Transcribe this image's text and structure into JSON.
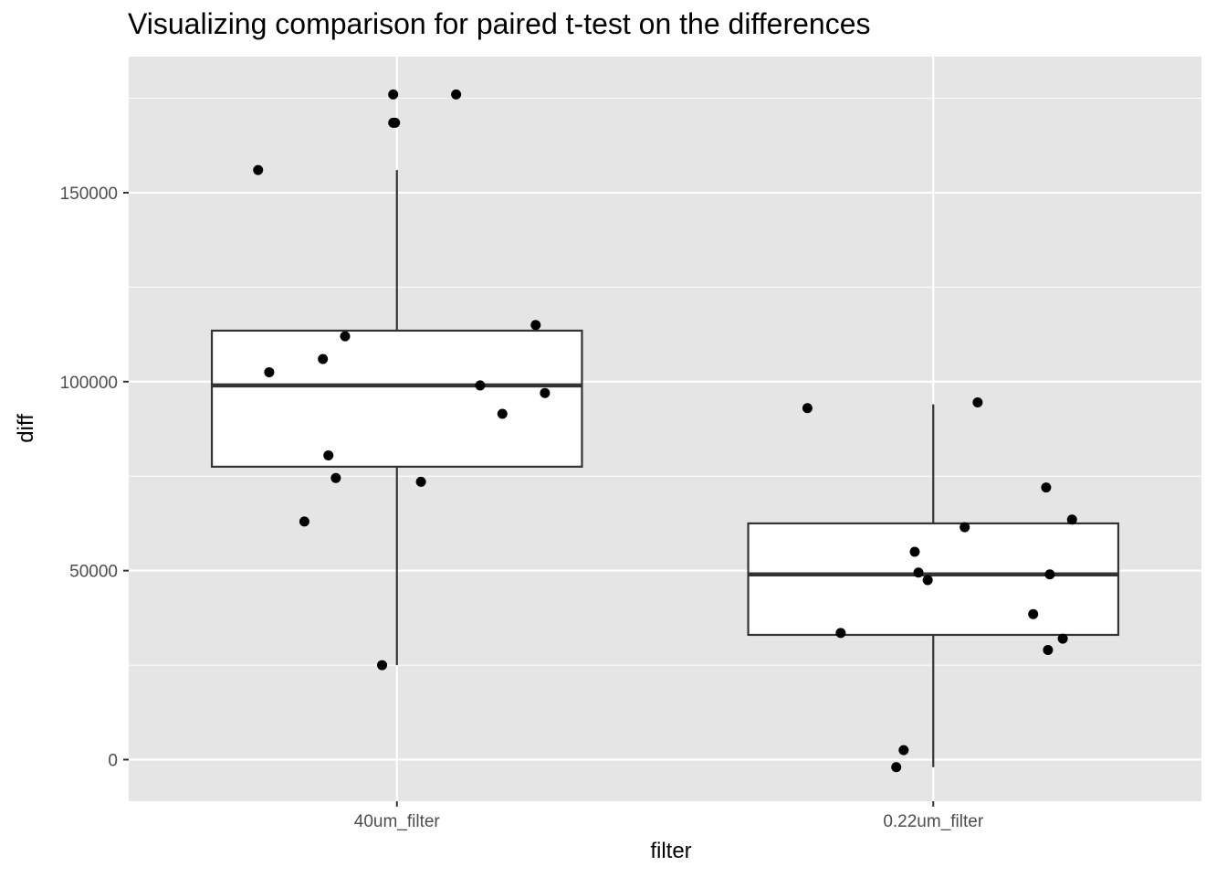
{
  "chart_data": {
    "type": "box",
    "title": "Visualizing comparison for paired t-test on the differences",
    "xlabel": "filter",
    "ylabel": "diff",
    "categories": [
      "40um_filter",
      "0.22um_filter"
    ],
    "y_ticks": [
      0,
      50000,
      100000,
      150000
    ],
    "y_tick_labels": [
      "0",
      "50000",
      "100000",
      "150000"
    ],
    "ylim": [
      -11000,
      186000
    ],
    "grid": true,
    "background": "#e5e5e5",
    "grid_color": "#ffffff",
    "box_fill": "#ffffff",
    "box_stroke": "#333333",
    "point_color": "#000000",
    "boxes": [
      {
        "category": "40um_filter",
        "lower_whisker": 25000,
        "q1": 77500,
        "median": 99000,
        "q3": 113500,
        "upper_whisker": 156000
      },
      {
        "category": "0.22um_filter",
        "lower_whisker": -2000,
        "q1": 33000,
        "median": 49000,
        "q3": 62500,
        "upper_whisker": 94000
      }
    ],
    "points": [
      {
        "category": "40um_filter",
        "jitter": -0.75,
        "y": 156000
      },
      {
        "category": "40um_filter",
        "jitter": -0.02,
        "y": 176000
      },
      {
        "category": "40um_filter",
        "jitter": -0.01,
        "y": 168500
      },
      {
        "category": "40um_filter",
        "jitter": -0.02,
        "y": 168500
      },
      {
        "category": "40um_filter",
        "jitter": 0.32,
        "y": 176000
      },
      {
        "category": "40um_filter",
        "jitter": -0.69,
        "y": 102500
      },
      {
        "category": "40um_filter",
        "jitter": -0.4,
        "y": 106000
      },
      {
        "category": "40um_filter",
        "jitter": -0.28,
        "y": 112000
      },
      {
        "category": "40um_filter",
        "jitter": 0.75,
        "y": 115000
      },
      {
        "category": "40um_filter",
        "jitter": 0.45,
        "y": 99000
      },
      {
        "category": "40um_filter",
        "jitter": 0.57,
        "y": 91500
      },
      {
        "category": "40um_filter",
        "jitter": 0.8,
        "y": 97000
      },
      {
        "category": "40um_filter",
        "jitter": -0.37,
        "y": 80500
      },
      {
        "category": "40um_filter",
        "jitter": -0.33,
        "y": 74500
      },
      {
        "category": "40um_filter",
        "jitter": 0.13,
        "y": 73500
      },
      {
        "category": "40um_filter",
        "jitter": -0.5,
        "y": 63000
      },
      {
        "category": "40um_filter",
        "jitter": -0.08,
        "y": 25000
      },
      {
        "category": "0.22um_filter",
        "jitter": -0.68,
        "y": 93000
      },
      {
        "category": "0.22um_filter",
        "jitter": 0.24,
        "y": 94500
      },
      {
        "category": "0.22um_filter",
        "jitter": 0.61,
        "y": 72000
      },
      {
        "category": "0.22um_filter",
        "jitter": 0.75,
        "y": 63500
      },
      {
        "category": "0.22um_filter",
        "jitter": 0.17,
        "y": 61500
      },
      {
        "category": "0.22um_filter",
        "jitter": -0.1,
        "y": 55000
      },
      {
        "category": "0.22um_filter",
        "jitter": -0.08,
        "y": 49500
      },
      {
        "category": "0.22um_filter",
        "jitter": -0.03,
        "y": 47500
      },
      {
        "category": "0.22um_filter",
        "jitter": 0.63,
        "y": 49000
      },
      {
        "category": "0.22um_filter",
        "jitter": 0.54,
        "y": 38500
      },
      {
        "category": "0.22um_filter",
        "jitter": 0.7,
        "y": 32000
      },
      {
        "category": "0.22um_filter",
        "jitter": 0.62,
        "y": 29000
      },
      {
        "category": "0.22um_filter",
        "jitter": -0.5,
        "y": 33500
      },
      {
        "category": "0.22um_filter",
        "jitter": -0.16,
        "y": 2500
      },
      {
        "category": "0.22um_filter",
        "jitter": -0.2,
        "y": -2000
      }
    ]
  }
}
